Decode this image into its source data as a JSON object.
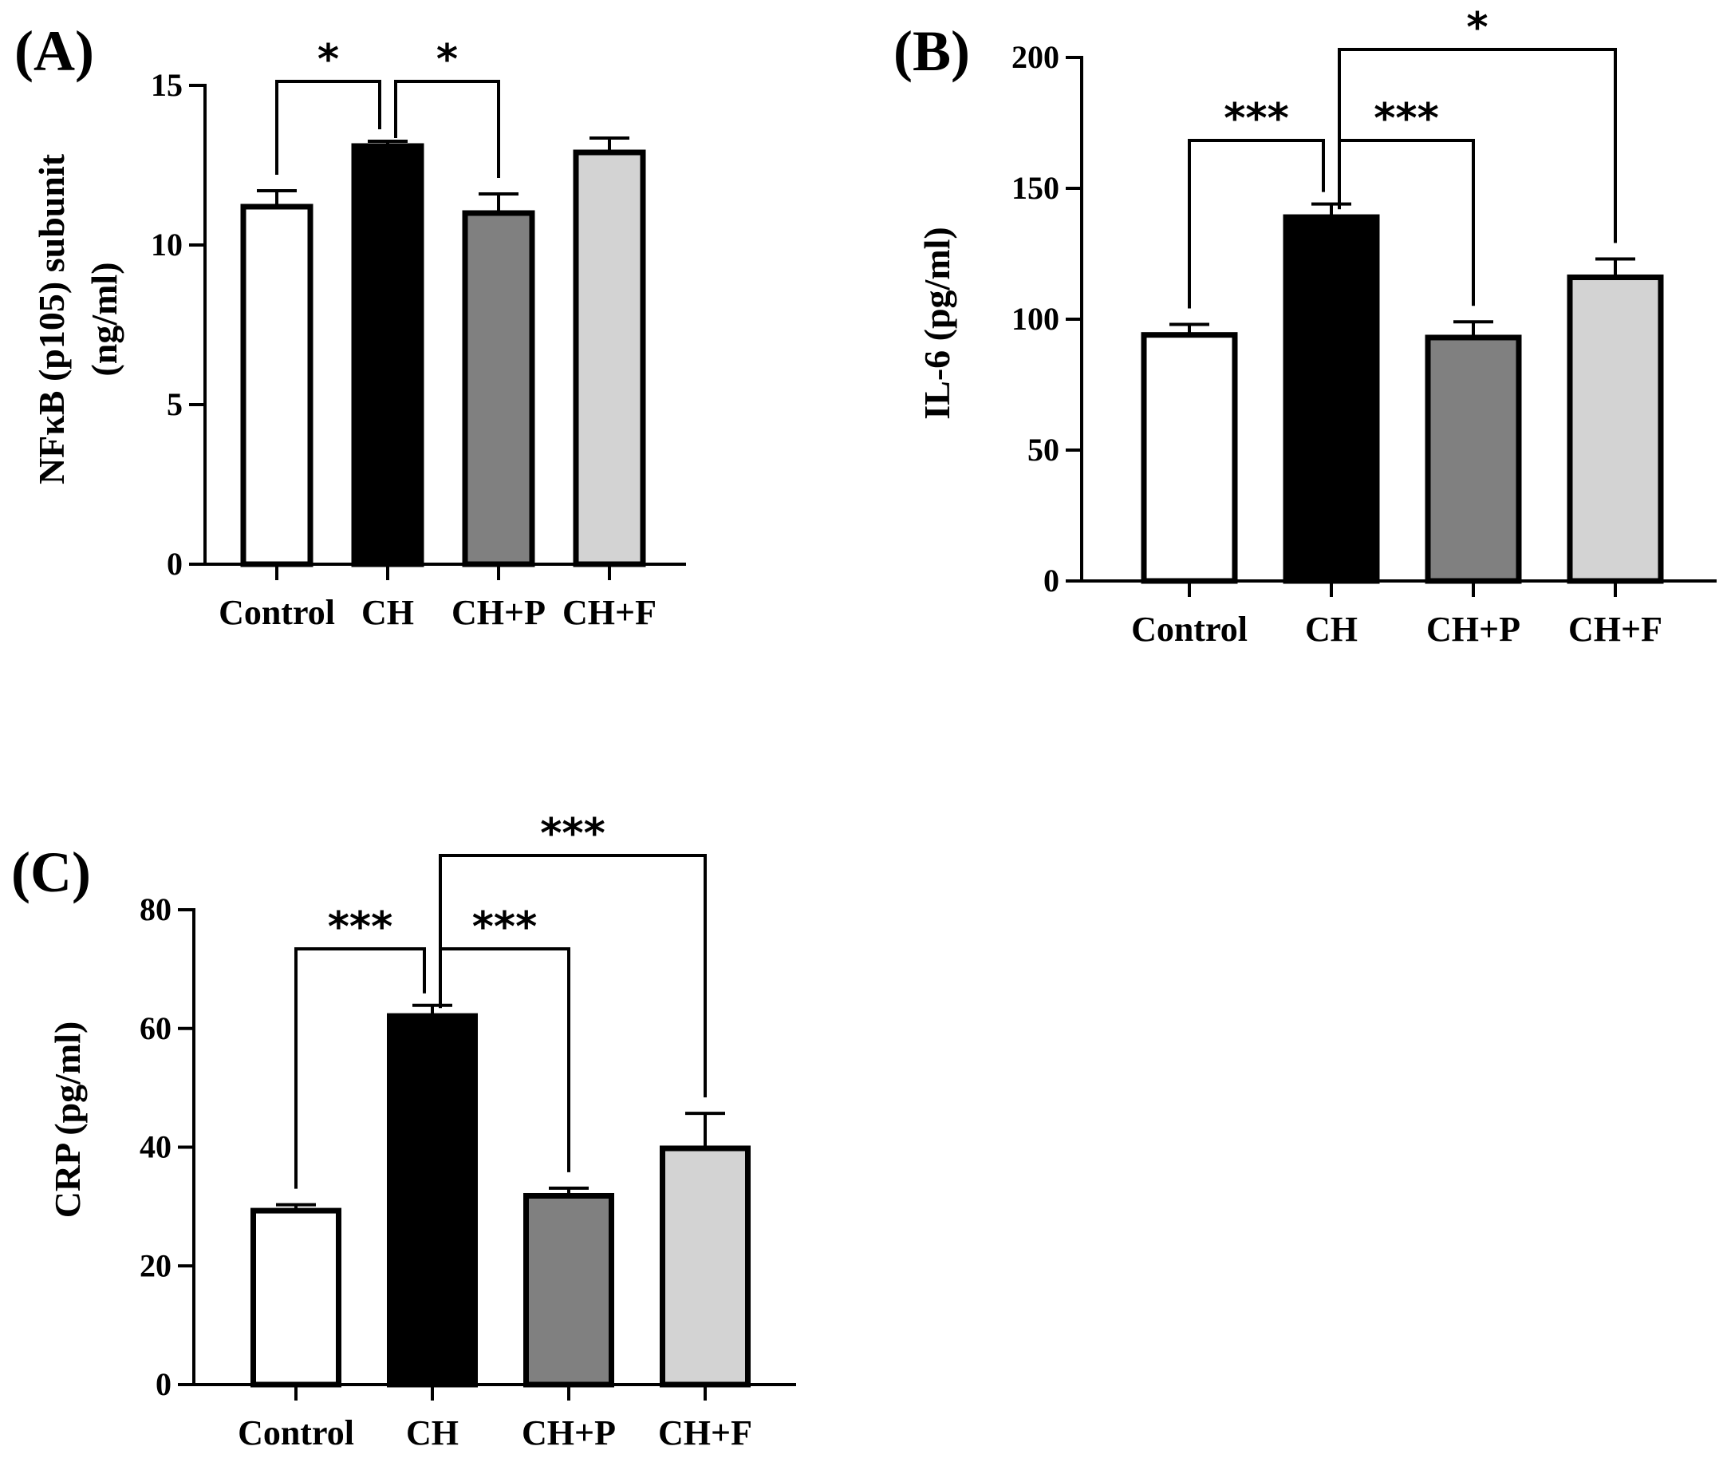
{
  "panels": [
    {
      "label": "(A)",
      "chart_data": {
        "type": "bar",
        "categories": [
          "Control",
          "CH",
          "CH+P",
          "CH+F"
        ],
        "values": [
          11.2,
          13.1,
          11.0,
          12.9
        ],
        "errors": [
          0.5,
          0.15,
          0.6,
          0.45
        ],
        "fills": [
          "#ffffff",
          "#000000",
          "#808080",
          "#d3d3d3"
        ],
        "ylabel_lines": [
          "NFκB (p105) subunit",
          "(ng/ml)"
        ],
        "ylim": [
          0,
          15
        ],
        "yticks": [
          0,
          5,
          10,
          15
        ],
        "significance": [
          {
            "from": 0,
            "to": 1,
            "label": "*",
            "level": 0
          },
          {
            "from": 1,
            "to": 2,
            "label": "*",
            "level": 0
          }
        ]
      }
    },
    {
      "label": "(B)",
      "chart_data": {
        "type": "bar",
        "categories": [
          "Control",
          "CH",
          "CH+P",
          "CH+F"
        ],
        "values": [
          94,
          139,
          93,
          116
        ],
        "errors": [
          4,
          5,
          6,
          7
        ],
        "fills": [
          "#ffffff",
          "#000000",
          "#808080",
          "#d3d3d3"
        ],
        "ylabel_lines": [
          "IL-6 (pg/ml)"
        ],
        "ylim": [
          0,
          200
        ],
        "yticks": [
          0,
          50,
          100,
          150,
          200
        ],
        "significance": [
          {
            "from": 0,
            "to": 1,
            "label": "***",
            "level": 0
          },
          {
            "from": 1,
            "to": 2,
            "label": "***",
            "level": 0
          },
          {
            "from": 1,
            "to": 3,
            "label": "*",
            "level": 1
          }
        ]
      }
    },
    {
      "label": "(C)",
      "chart_data": {
        "type": "bar",
        "categories": [
          "Control",
          "CH",
          "CH+P",
          "CH+F"
        ],
        "values": [
          29.3,
          62.1,
          31.8,
          39.8
        ],
        "errors": [
          1.0,
          1.8,
          1.3,
          5.9
        ],
        "fills": [
          "#ffffff",
          "#000000",
          "#808080",
          "#d3d3d3"
        ],
        "ylabel_lines": [
          "CRP (pg/ml)"
        ],
        "ylim": [
          0,
          80
        ],
        "yticks": [
          0,
          20,
          40,
          60,
          80
        ],
        "significance": [
          {
            "from": 0,
            "to": 1,
            "label": "***",
            "level": 0
          },
          {
            "from": 1,
            "to": 2,
            "label": "***",
            "level": 0
          },
          {
            "from": 1,
            "to": 3,
            "label": "***",
            "level": 1
          }
        ]
      }
    }
  ]
}
